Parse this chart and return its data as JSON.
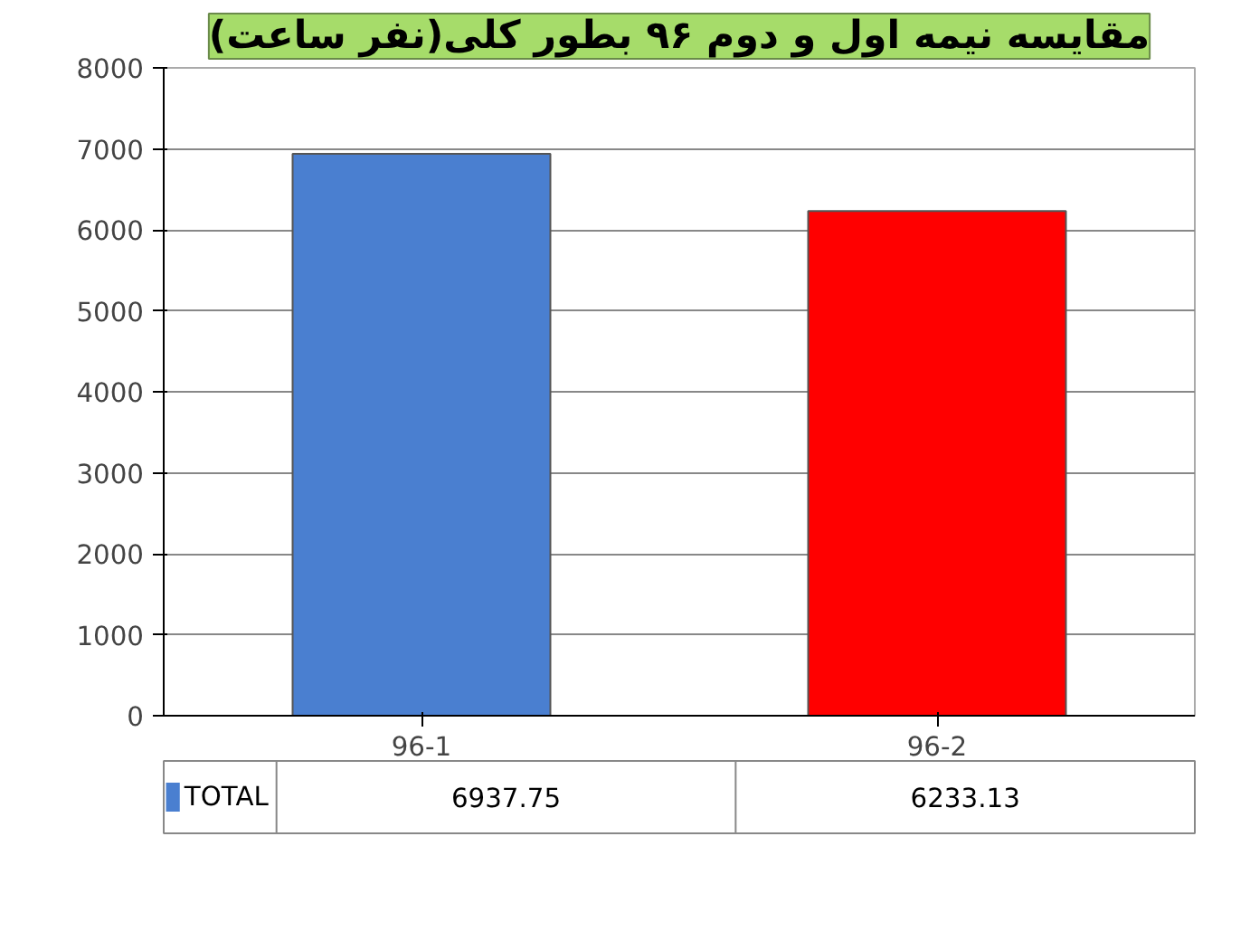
{
  "chart_data": {
    "type": "bar",
    "title": "مقایسه نیمه اول و دوم ۹۶ بطور کلی(نفر ساعت)",
    "categories": [
      "96-1",
      "96-2"
    ],
    "series": [
      {
        "name": "TOTAL",
        "colors": [
          "#4a7fd0",
          "#ff0000"
        ],
        "values": [
          6937.75,
          6233.13
        ]
      }
    ],
    "ylim": [
      0,
      8000
    ],
    "yticks": [
      0,
      1000,
      2000,
      3000,
      4000,
      5000,
      6000,
      7000,
      8000
    ],
    "grid": "y",
    "data_labels": true
  }
}
